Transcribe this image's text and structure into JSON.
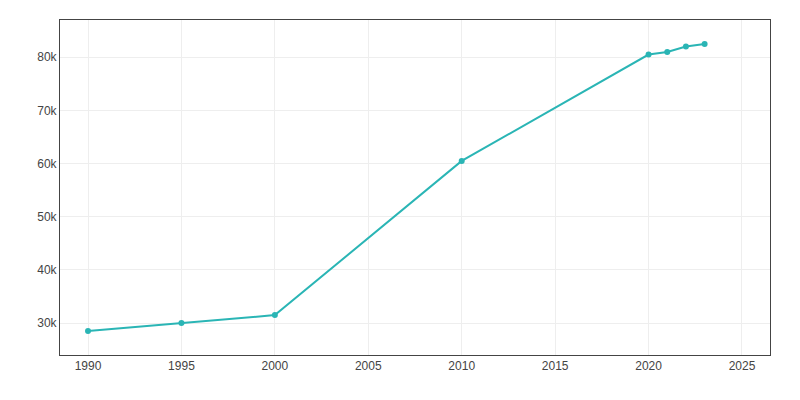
{
  "chart_data": {
    "type": "line",
    "x": [
      1990,
      1995,
      2000,
      2010,
      2020,
      2021,
      2022,
      2023
    ],
    "values": [
      28500,
      30000,
      31500,
      60500,
      80500,
      81000,
      82000,
      82500
    ],
    "color": "#2ab5b5",
    "marker": "circle",
    "xlim": [
      1988.5,
      2026.5
    ],
    "ylim": [
      24000,
      87000
    ],
    "xticks": [
      1990,
      1995,
      2000,
      2005,
      2010,
      2015,
      2020,
      2025
    ],
    "yticks": [
      {
        "value": 30000,
        "label": "30k"
      },
      {
        "value": 40000,
        "label": "40k"
      },
      {
        "value": 50000,
        "label": "50k"
      },
      {
        "value": 60000,
        "label": "60k"
      },
      {
        "value": 70000,
        "label": "70k"
      },
      {
        "value": 80000,
        "label": "80k"
      }
    ],
    "grid": true
  }
}
